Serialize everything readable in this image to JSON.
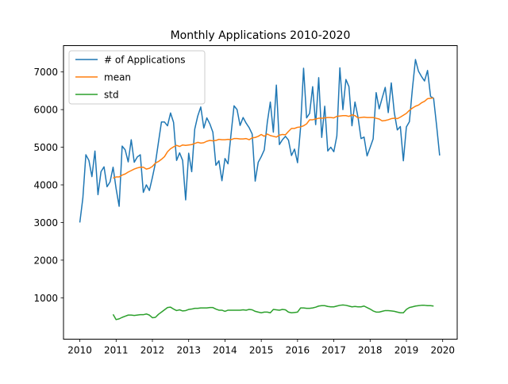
{
  "chart_data": {
    "type": "line",
    "title": "Monthly Applications 2010-2020",
    "xlabel": "",
    "ylabel": "",
    "xlim": [
      2009.55,
      2020.4
    ],
    "ylim": [
      -100,
      7700
    ],
    "xticks": [
      2010,
      2011,
      2012,
      2013,
      2014,
      2015,
      2016,
      2017,
      2018,
      2019,
      2020
    ],
    "yticks": [
      1000,
      2000,
      3000,
      4000,
      5000,
      6000,
      7000
    ],
    "grid": false,
    "legend_position": "top-left",
    "x_start": 2010.0,
    "x_step": 0.08333,
    "series": [
      {
        "name": "# of Applications",
        "color": "#1f77b4",
        "values": [
          3000,
          3650,
          4800,
          4650,
          4220,
          4900,
          3740,
          4350,
          4480,
          3950,
          4080,
          4470,
          3900,
          3430,
          5030,
          4930,
          4610,
          5200,
          4600,
          4740,
          4800,
          3800,
          4000,
          3850,
          4200,
          4580,
          5130,
          5670,
          5670,
          5570,
          5910,
          5660,
          4650,
          4850,
          4650,
          3600,
          4840,
          4350,
          5480,
          5830,
          6070,
          5510,
          5780,
          5620,
          5400,
          4520,
          4640,
          4110,
          4700,
          4560,
          5340,
          6100,
          6000,
          5580,
          5790,
          5640,
          5520,
          5350,
          4100,
          4600,
          4750,
          4930,
          5660,
          6200,
          5400,
          6650,
          5070,
          5200,
          5290,
          5190,
          4780,
          4950,
          4590,
          5520,
          7100,
          5780,
          5900,
          6610,
          5600,
          6850,
          5260,
          6090,
          4900,
          5000,
          4880,
          5300,
          7110,
          6000,
          6800,
          6610,
          5570,
          6200,
          5800,
          5230,
          5270,
          4770,
          4990,
          5220,
          6450,
          6020,
          6310,
          6590,
          5920,
          6710,
          5920,
          5460,
          5550,
          4640,
          5540,
          5680,
          6560,
          7330,
          7020,
          6880,
          6760,
          7040,
          6350,
          6300,
          5570,
          4780
        ]
      },
      {
        "name": "mean",
        "color": "#ff7f0e",
        "start_index": 11,
        "values": [
          4180,
          4210,
          4210,
          4260,
          4290,
          4340,
          4380,
          4420,
          4450,
          4470,
          4470,
          4420,
          4440,
          4490,
          4580,
          4620,
          4680,
          4750,
          4880,
          4960,
          5010,
          5050,
          5020,
          5060,
          5050,
          5060,
          5070,
          5100,
          5130,
          5110,
          5120,
          5160,
          5180,
          5170,
          5180,
          5210,
          5200,
          5200,
          5210,
          5200,
          5230,
          5230,
          5220,
          5220,
          5230,
          5200,
          5250,
          5260,
          5290,
          5340,
          5290,
          5350,
          5310,
          5290,
          5270,
          5320,
          5340,
          5330,
          5420,
          5500,
          5500,
          5530,
          5540,
          5570,
          5620,
          5730,
          5730,
          5750,
          5770,
          5770,
          5780,
          5790,
          5790,
          5780,
          5820,
          5830,
          5840,
          5840,
          5820,
          5860,
          5840,
          5780,
          5790,
          5800,
          5790,
          5790,
          5790,
          5770,
          5750,
          5700,
          5710,
          5730,
          5760,
          5770,
          5760,
          5800,
          5850,
          5900,
          5980,
          6040,
          6090,
          6120,
          6180,
          6220,
          6290,
          6300,
          6310
        ]
      },
      {
        "name": "std",
        "color": "#2ca02c",
        "start_index": 11,
        "values": [
          560,
          420,
          440,
          480,
          510,
          540,
          540,
          530,
          540,
          550,
          550,
          570,
          540,
          470,
          480,
          560,
          620,
          680,
          740,
          750,
          700,
          660,
          680,
          650,
          660,
          690,
          700,
          720,
          720,
          730,
          730,
          730,
          740,
          740,
          700,
          670,
          670,
          640,
          670,
          670,
          670,
          670,
          670,
          680,
          670,
          690,
          680,
          640,
          620,
          600,
          620,
          620,
          600,
          690,
          680,
          670,
          690,
          680,
          620,
          600,
          610,
          620,
          730,
          730,
          720,
          720,
          730,
          750,
          780,
          790,
          790,
          770,
          760,
          760,
          780,
          800,
          810,
          800,
          780,
          760,
          770,
          760,
          760,
          780,
          740,
          700,
          650,
          620,
          620,
          640,
          660,
          660,
          650,
          640,
          620,
          600,
          600,
          690,
          740,
          760,
          780,
          790,
          800,
          800,
          790,
          790,
          780
        ]
      }
    ]
  }
}
